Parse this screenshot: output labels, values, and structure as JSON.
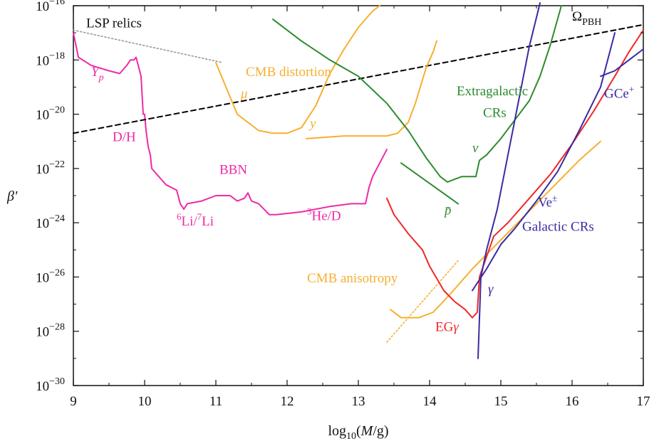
{
  "chart_data": {
    "type": "line",
    "xlabel": "log10(M/g)",
    "ylabel": "β'",
    "x_range": [
      9,
      17
    ],
    "y_range_log10": [
      -30,
      -16
    ],
    "log_y": true,
    "grid": false,
    "x_ticks": [
      9,
      10,
      11,
      12,
      13,
      14,
      15,
      16,
      17
    ],
    "x_tick_labels": [
      "9",
      "10",
      "11",
      "12",
      "13",
      "14",
      "15",
      "16",
      "17"
    ],
    "y_ticks": [
      -30,
      -28,
      -26,
      -24,
      -22,
      -20,
      -18,
      -16
    ],
    "y_tick_labels": [
      {
        "base": "10",
        "exp": "−30"
      },
      {
        "base": "10",
        "exp": "−28"
      },
      {
        "base": "10",
        "exp": "−26"
      },
      {
        "base": "10",
        "exp": "−24"
      },
      {
        "base": "10",
        "exp": "−22"
      },
      {
        "base": "10",
        "exp": "−20"
      },
      {
        "base": "10",
        "exp": "−18"
      },
      {
        "base": "10",
        "exp": "−16"
      }
    ],
    "colors": {
      "bbn": "#ee2aa8",
      "cmb": "#f5b030",
      "extragalactic": "#2e8b2e",
      "galactic": "#3a2ca0",
      "egamma": "#f02828",
      "omega": "#000000",
      "lsp": "#999999"
    },
    "series": [
      {
        "key": "bbn",
        "color": "#ee2aa8",
        "dash": "",
        "x_log10M": [
          9.0,
          9.07,
          9.25,
          9.5,
          9.65,
          9.75,
          9.8,
          9.85,
          9.88,
          9.9,
          9.95,
          9.98,
          10.0,
          10.02,
          10.05,
          10.08,
          10.1,
          10.2,
          10.3,
          10.45,
          10.5,
          10.55,
          10.6,
          10.8,
          11.0,
          11.2,
          11.3,
          11.4,
          11.45,
          11.5,
          11.6,
          11.75,
          11.85,
          12.2,
          12.6,
          12.9,
          13.1,
          13.15,
          13.2,
          13.3,
          13.4
        ],
        "y_log10beta": [
          -17.0,
          -17.9,
          -18.2,
          -18.4,
          -18.5,
          -18.2,
          -18.0,
          -18.0,
          -17.9,
          -18.1,
          -18.6,
          -20.0,
          -20.0,
          -20.6,
          -21.2,
          -21.5,
          -22.0,
          -22.3,
          -22.6,
          -22.8,
          -23.3,
          -23.5,
          -23.3,
          -23.2,
          -23.0,
          -23.0,
          -23.2,
          -23.1,
          -22.9,
          -23.2,
          -23.3,
          -23.7,
          -23.7,
          -23.6,
          -23.4,
          -23.3,
          -23.3,
          -22.7,
          -22.3,
          -21.8,
          -21.3
        ]
      },
      {
        "key": "lsp",
        "color": "#999999",
        "dash": "2,3",
        "x_log10M": [
          9.0,
          11.1
        ],
        "y_log10beta": [
          -16.9,
          -18.1
        ]
      },
      {
        "key": "omega_pbh",
        "color": "#000000",
        "dash": "7,5",
        "x_log10M": [
          9.0,
          17.0
        ],
        "y_log10beta": [
          -20.7,
          -16.7
        ]
      },
      {
        "key": "cmb_mu",
        "color": "#f5b030",
        "dash": "",
        "x_log10M": [
          11.0,
          11.3,
          11.6,
          11.8,
          12.0,
          12.2,
          12.4,
          12.6,
          12.8,
          13.0,
          13.2,
          13.3
        ],
        "y_log10beta": [
          -18.1,
          -20.0,
          -20.6,
          -20.7,
          -20.7,
          -20.5,
          -19.7,
          -18.5,
          -17.6,
          -16.8,
          -16.2,
          -16.0
        ]
      },
      {
        "key": "cmb_y",
        "color": "#f5b030",
        "dash": "",
        "x_log10M": [
          12.27,
          12.8,
          13.2,
          13.4,
          13.55,
          13.7,
          13.8,
          13.95,
          14.05,
          14.1
        ],
        "y_log10beta": [
          -20.9,
          -20.8,
          -20.8,
          -20.8,
          -20.7,
          -20.3,
          -19.6,
          -18.3,
          -17.7,
          -17.3
        ]
      },
      {
        "key": "cmb_aniso",
        "color": "#f5b030",
        "dash": "",
        "x_log10M": [
          13.45,
          13.6,
          13.85,
          14.05,
          14.3,
          14.6,
          14.9,
          15.2,
          15.5,
          15.8,
          16.1,
          16.4
        ],
        "y_log10beta": [
          -27.2,
          -27.5,
          -27.5,
          -27.3,
          -26.6,
          -25.7,
          -24.9,
          -24.1,
          -23.3,
          -22.5,
          -21.7,
          -21.0
        ]
      },
      {
        "key": "cmb_aniso_dotted",
        "color": "#f5b030",
        "dash": "2,3",
        "x_log10M": [
          13.4,
          14.4
        ],
        "y_log10beta": [
          -28.4,
          -25.4
        ]
      },
      {
        "key": "extragalactic",
        "color": "#2e8b2e",
        "dash": "",
        "x_log10M": [
          11.8,
          12.2,
          12.6,
          13.0,
          13.4,
          13.7,
          13.95,
          14.15,
          14.25,
          14.45,
          14.65,
          14.7,
          14.8,
          15.0,
          15.2,
          15.4,
          15.55,
          15.7,
          15.85
        ],
        "y_log10beta": [
          -16.5,
          -17.3,
          -18.0,
          -18.6,
          -19.6,
          -20.6,
          -21.6,
          -22.3,
          -22.5,
          -22.3,
          -22.3,
          -21.7,
          -21.5,
          -20.9,
          -20.2,
          -19.5,
          -18.6,
          -17.4,
          -16.0
        ]
      },
      {
        "key": "extragalactic_pbar",
        "color": "#2e8b2e",
        "dash": "",
        "x_log10M": [
          13.6,
          14.4
        ],
        "y_log10beta": [
          -21.8,
          -23.3
        ]
      },
      {
        "key": "egamma",
        "color": "#f02828",
        "dash": "",
        "x_log10M": [
          13.4,
          13.5,
          13.7,
          13.9,
          14.0,
          14.2,
          14.35,
          14.5,
          14.6,
          14.67,
          14.7
        ],
        "y_log10beta": [
          -23.1,
          -23.7,
          -24.4,
          -25.0,
          -25.6,
          -26.5,
          -26.9,
          -27.2,
          -27.5,
          -27.3,
          -26.0
        ]
      },
      {
        "key": "egamma_upper",
        "color": "#f02828",
        "dash": "",
        "x_log10M": [
          14.7,
          14.9,
          15.1,
          15.4,
          15.7,
          16.0,
          16.3,
          16.6,
          16.8,
          17.0
        ],
        "y_log10beta": [
          -26.0,
          -24.5,
          -24.0,
          -23.1,
          -22.2,
          -21.1,
          -19.9,
          -18.6,
          -17.7,
          -16.9
        ]
      },
      {
        "key": "galactic_gamma",
        "color": "#3a2ca0",
        "dash": "",
        "x_log10M": [
          14.68,
          14.72,
          14.8,
          14.95,
          15.1,
          15.25,
          15.4,
          15.55
        ],
        "y_log10beta": [
          -29.0,
          -26.0,
          -25.0,
          -23.5,
          -21.5,
          -19.5,
          -17.5,
          -15.9
        ]
      },
      {
        "key": "galactic_ve",
        "color": "#3a2ca0",
        "dash": "",
        "x_log10M": [
          14.6,
          14.8,
          15.0,
          15.2,
          15.5,
          15.8,
          16.1,
          16.4,
          16.6
        ],
        "y_log10beta": [
          -26.5,
          -25.7,
          -24.8,
          -24.2,
          -23.2,
          -22.1,
          -20.6,
          -19.0,
          -17.0
        ]
      },
      {
        "key": "galactic_gc",
        "color": "#3a2ca0",
        "dash": "",
        "x_log10M": [
          16.4,
          16.6,
          16.8,
          17.0
        ],
        "y_log10beta": [
          -18.6,
          -18.4,
          -18.0,
          -17.6
        ]
      }
    ],
    "annotations": [
      {
        "key": "lsp",
        "text": "LSP relics",
        "color": "#111111",
        "x": 9.18,
        "y": -16.8
      },
      {
        "key": "omega",
        "text": "Ω",
        "sub": "PBH",
        "color": "#111111",
        "x": 16.0,
        "y": -16.55
      },
      {
        "key": "yp",
        "text": "Y",
        "sub": "p",
        "italic": true,
        "color": "#ee2aa8",
        "x": 9.25,
        "y": -18.6
      },
      {
        "key": "dh",
        "text": "D/H",
        "color": "#ee2aa8",
        "x": 9.55,
        "y": -21.0
      },
      {
        "key": "bbn",
        "text": "BBN",
        "color": "#ee2aa8",
        "x": 11.05,
        "y": -22.2
      },
      {
        "key": "li",
        "sup1": "6",
        "text": "Li/",
        "sup2": "7",
        "text2": "Li",
        "color": "#ee2aa8",
        "x": 10.45,
        "y": -24.1
      },
      {
        "key": "he",
        "sup1": "3",
        "text": "He/D",
        "color": "#ee2aa8",
        "x": 12.28,
        "y": -23.9
      },
      {
        "key": "cmb_dist",
        "text": "CMB distortion",
        "color": "#f5b030",
        "x": 11.42,
        "y": -18.6
      },
      {
        "key": "mu",
        "text": "μ",
        "italic": true,
        "color": "#f5b030",
        "x": 11.35,
        "y": -19.4
      },
      {
        "key": "ylab",
        "text": "y",
        "italic": true,
        "color": "#f5b030",
        "x": 12.32,
        "y": -20.5
      },
      {
        "key": "extra",
        "text": "Extragalactic",
        "color": "#2e8b2e",
        "x": 14.38,
        "y": -19.3
      },
      {
        "key": "crs",
        "text": "CRs",
        "color": "#2e8b2e",
        "x": 14.75,
        "y": -20.1
      },
      {
        "key": "nu",
        "text": "ν",
        "italic": true,
        "color": "#2e8b2e",
        "x": 14.6,
        "y": -21.4
      },
      {
        "key": "pbar",
        "text": "p̄",
        "italic": true,
        "color": "#2e8b2e",
        "x": 14.21,
        "y": -23.7
      },
      {
        "key": "gce",
        "text": "GCe",
        "sup1": "+",
        "color": "#3a2ca0",
        "x": 16.45,
        "y": -19.4
      },
      {
        "key": "ve",
        "text": "Ve",
        "sup1": "±",
        "color": "#3a2ca0",
        "x": 15.52,
        "y": -23.4
      },
      {
        "key": "galactic",
        "text": "Galactic CRs",
        "color": "#3a2ca0",
        "x": 15.3,
        "y": -24.3
      },
      {
        "key": "gamma",
        "text": "γ",
        "italic": true,
        "color": "#3a2ca0",
        "x": 14.82,
        "y": -26.6
      },
      {
        "key": "cmb_aniso",
        "text": "CMB anisotropy",
        "color": "#f5b030",
        "x": 12.28,
        "y": -26.2
      },
      {
        "key": "eg",
        "text": "EG",
        "tail": "γ",
        "color": "#f02828",
        "x": 14.08,
        "y": -28.0
      }
    ]
  }
}
